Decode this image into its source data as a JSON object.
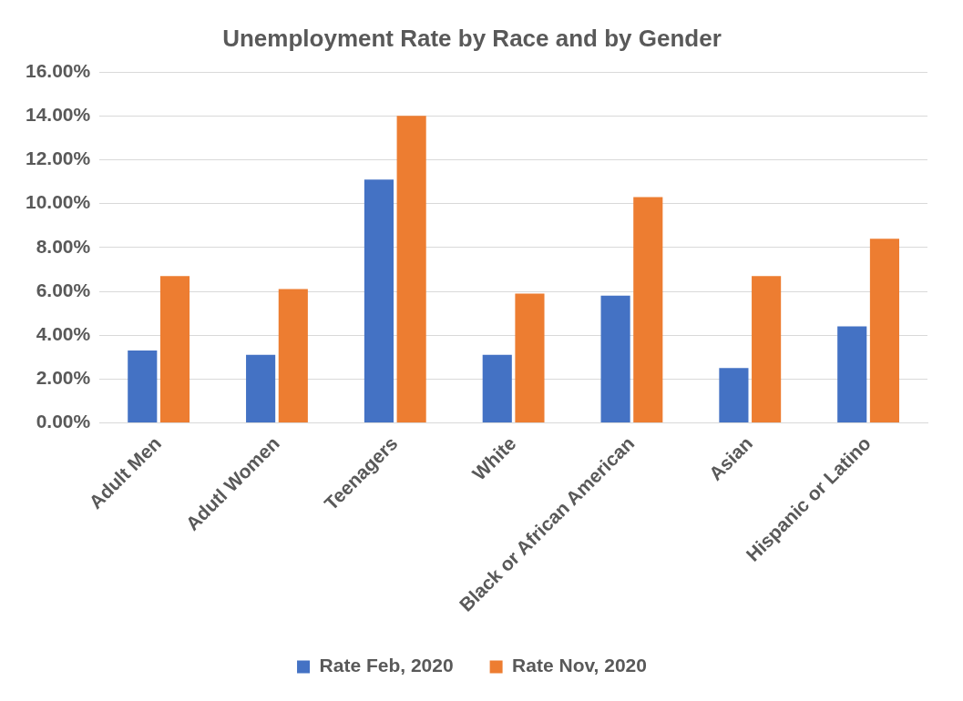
{
  "chart_data": {
    "type": "bar",
    "title": "Unemployment Rate by Race and by Gender",
    "categories": [
      "Adult Men",
      "Adutl Women",
      "Teenagers",
      "White",
      "Black or African American",
      "Asian",
      "Hispanic or Latino"
    ],
    "series": [
      {
        "name": "Rate Feb, 2020",
        "color": "#4472c4",
        "values": [
          3.3,
          3.1,
          11.1,
          3.1,
          5.8,
          2.5,
          4.4
        ]
      },
      {
        "name": "Rate Nov, 2020",
        "color": "#ed7d31",
        "values": [
          6.7,
          6.1,
          14.0,
          5.9,
          10.3,
          6.7,
          8.4
        ]
      }
    ],
    "ylim": [
      0,
      16
    ],
    "yticks": [
      {
        "value": 0,
        "label": "0.00%"
      },
      {
        "value": 2,
        "label": "2.00%"
      },
      {
        "value": 4,
        "label": "4.00%"
      },
      {
        "value": 6,
        "label": "6.00%"
      },
      {
        "value": 8,
        "label": "8.00%"
      },
      {
        "value": 10,
        "label": "10.00%"
      },
      {
        "value": 12,
        "label": "12.00%"
      },
      {
        "value": 14,
        "label": "14.00%"
      },
      {
        "value": 16,
        "label": "16.00%"
      }
    ],
    "grid": "y",
    "legend": "bottom"
  }
}
